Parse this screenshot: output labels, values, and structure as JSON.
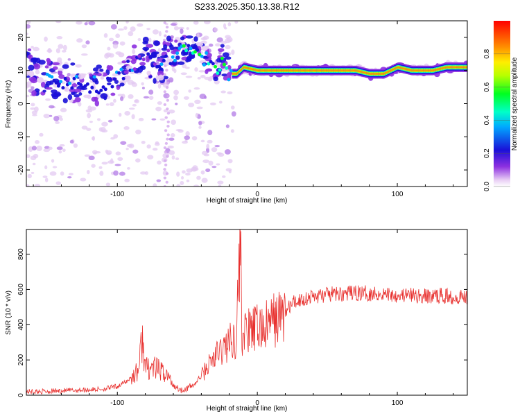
{
  "title": "S233.2025.350.13.38.R12",
  "chart_data": [
    {
      "type": "heatmap",
      "name": "spectrogram",
      "xlabel": "Height of straight line (km)",
      "ylabel": "Frequency (Hz)",
      "xlim": [
        -165,
        150
      ],
      "ylim": [
        -25,
        25
      ],
      "xticks": [
        -100,
        0,
        100
      ],
      "yticks": [
        -20,
        -10,
        0,
        10,
        20
      ],
      "colorbar": {
        "label": "Normalized spectral amplitude",
        "range": [
          0,
          1
        ],
        "ticks": [
          0.0,
          0.2,
          0.4,
          0.6,
          0.8
        ]
      },
      "ridge": [
        {
          "x": -160,
          "f": 9
        },
        {
          "x": -150,
          "f": 8
        },
        {
          "x": -140,
          "f": 7
        },
        {
          "x": -130,
          "f": 6
        },
        {
          "x": -120,
          "f": 6
        },
        {
          "x": -110,
          "f": 5
        },
        {
          "x": -100,
          "f": 8
        },
        {
          "x": -90,
          "f": 11
        },
        {
          "x": -80,
          "f": 14
        },
        {
          "x": -70,
          "f": 12
        },
        {
          "x": -65,
          "f": 13
        },
        {
          "x": -60,
          "f": 15
        },
        {
          "x": -50,
          "f": 17
        },
        {
          "x": -40,
          "f": 15
        },
        {
          "x": -35,
          "f": 12
        },
        {
          "x": -30,
          "f": 10
        },
        {
          "x": -25,
          "f": 14
        },
        {
          "x": -20,
          "f": 9
        },
        {
          "x": -15,
          "f": 9
        },
        {
          "x": -10,
          "f": 11
        },
        {
          "x": 0,
          "f": 10
        },
        {
          "x": 10,
          "f": 10
        },
        {
          "x": 25,
          "f": 10
        },
        {
          "x": 50,
          "f": 10
        },
        {
          "x": 70,
          "f": 10
        },
        {
          "x": 80,
          "f": 9
        },
        {
          "x": 90,
          "f": 9
        },
        {
          "x": 100,
          "f": 11
        },
        {
          "x": 110,
          "f": 10
        },
        {
          "x": 125,
          "f": 10
        },
        {
          "x": 135,
          "f": 11
        },
        {
          "x": 150,
          "f": 11
        }
      ]
    },
    {
      "type": "line",
      "name": "snr",
      "xlabel": "Height of straight line (km)",
      "ylabel": "SNR (10 * v/v)",
      "xlim": [
        -165,
        150
      ],
      "ylim": [
        0,
        940
      ],
      "xticks": [
        -100,
        0,
        100
      ],
      "yticks": [
        0,
        200,
        400,
        600,
        800
      ],
      "series": [
        {
          "name": "SNR",
          "color": "#e8312f",
          "x": [
            -165,
            -150,
            -130,
            -110,
            -100,
            -95,
            -90,
            -85,
            -82,
            -80,
            -75,
            -70,
            -65,
            -60,
            -55,
            -50,
            -45,
            -40,
            -35,
            -30,
            -25,
            -20,
            -15,
            -12,
            -11,
            -8,
            -5,
            0,
            5,
            10,
            15,
            20,
            25,
            30,
            40,
            50,
            60,
            70,
            80,
            90,
            100,
            110,
            120,
            130,
            140,
            150
          ],
          "y": [
            20,
            22,
            28,
            35,
            50,
            70,
            100,
            140,
            330,
            150,
            160,
            140,
            120,
            60,
            30,
            40,
            60,
            110,
            170,
            220,
            260,
            300,
            330,
            930,
            340,
            360,
            360,
            380,
            380,
            420,
            440,
            470,
            520,
            540,
            560,
            570,
            575,
            580,
            578,
            575,
            570,
            565,
            560,
            565,
            560,
            560
          ]
        }
      ]
    }
  ]
}
